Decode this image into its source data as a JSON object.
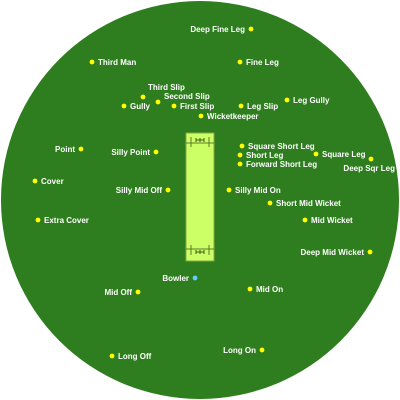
{
  "colors": {
    "field": "#2e7d1e",
    "pitch": "#ccff66",
    "pitch_line": "#8aa844",
    "fielder": "#ffff00",
    "bowler": "#66ccff",
    "label": "#ffffff"
  },
  "pitch": {
    "wicketkeeper_end_icon": "stumps-icon",
    "bowler_end_icon": "stumps-icon"
  },
  "positions": [
    {
      "id": "deep-fine-leg",
      "label": "Deep Fine Leg",
      "role": "fielder"
    },
    {
      "id": "third-man",
      "label": "Third Man",
      "role": "fielder"
    },
    {
      "id": "fine-leg",
      "label": "Fine Leg",
      "role": "fielder"
    },
    {
      "id": "third-slip",
      "label": "Third Slip",
      "role": "fielder"
    },
    {
      "id": "second-slip",
      "label": "Second Slip",
      "role": "fielder"
    },
    {
      "id": "first-slip",
      "label": "First Slip",
      "role": "fielder"
    },
    {
      "id": "gully",
      "label": "Gully",
      "role": "fielder"
    },
    {
      "id": "leg-slip",
      "label": "Leg Slip",
      "role": "fielder"
    },
    {
      "id": "leg-gully",
      "label": "Leg Gully",
      "role": "fielder"
    },
    {
      "id": "wicketkeeper",
      "label": "Wicketkeeper",
      "role": "fielder"
    },
    {
      "id": "point",
      "label": "Point",
      "role": "fielder"
    },
    {
      "id": "silly-point",
      "label": "Silly Point",
      "role": "fielder"
    },
    {
      "id": "square-short-leg",
      "label": "Square Short Leg",
      "role": "fielder"
    },
    {
      "id": "short-leg",
      "label": "Short Leg",
      "role": "fielder"
    },
    {
      "id": "square-leg",
      "label": "Square Leg",
      "role": "fielder"
    },
    {
      "id": "forward-short-leg",
      "label": "Forward Short Leg",
      "role": "fielder"
    },
    {
      "id": "deep-sqr-leg",
      "label": "Deep Sqr Leg",
      "role": "fielder"
    },
    {
      "id": "cover",
      "label": "Cover",
      "role": "fielder"
    },
    {
      "id": "silly-mid-off",
      "label": "Silly Mid Off",
      "role": "fielder"
    },
    {
      "id": "silly-mid-on",
      "label": "Silly Mid On",
      "role": "fielder"
    },
    {
      "id": "short-mid-wicket",
      "label": "Short Mid Wicket",
      "role": "fielder"
    },
    {
      "id": "extra-cover",
      "label": "Extra Cover",
      "role": "fielder"
    },
    {
      "id": "mid-wicket",
      "label": "Mid Wicket",
      "role": "fielder"
    },
    {
      "id": "deep-mid-wicket",
      "label": "Deep Mid Wicket",
      "role": "fielder"
    },
    {
      "id": "bowler",
      "label": "Bowler",
      "role": "bowler"
    },
    {
      "id": "mid-off",
      "label": "Mid Off",
      "role": "fielder"
    },
    {
      "id": "mid-on",
      "label": "Mid On",
      "role": "fielder"
    },
    {
      "id": "long-off",
      "label": "Long Off",
      "role": "fielder"
    },
    {
      "id": "long-on",
      "label": "Long On",
      "role": "fielder"
    }
  ]
}
